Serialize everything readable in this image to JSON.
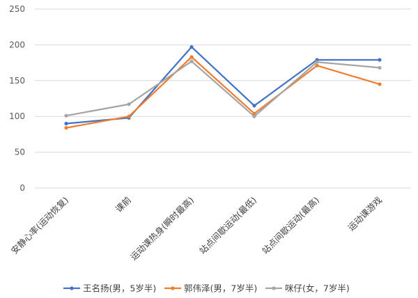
{
  "chart_data": {
    "type": "line",
    "categories": [
      "安静心率(运动恢复)",
      "课前",
      "运动课热身(瞬时最高)",
      "站点间歇运动(最低)",
      "站点间歇运动(最高)",
      "运动课游戏"
    ],
    "ylim": [
      0,
      250
    ],
    "yticks": [
      0,
      50,
      100,
      150,
      200,
      250
    ],
    "grid": true,
    "legend_position": "bottom",
    "series": [
      {
        "name": "王名扬(男，5岁半)",
        "color": "#4472c4",
        "values": [
          90,
          98,
          197,
          115,
          179,
          179
        ]
      },
      {
        "name": "郭伟泽(男，7岁半)",
        "color": "#ed7d31",
        "values": [
          84,
          100,
          183,
          104,
          171,
          145
        ]
      },
      {
        "name": "咪仔(女，7岁半)",
        "color": "#a5a5a5",
        "values": [
          101,
          117,
          177,
          100,
          176,
          168
        ]
      }
    ]
  }
}
